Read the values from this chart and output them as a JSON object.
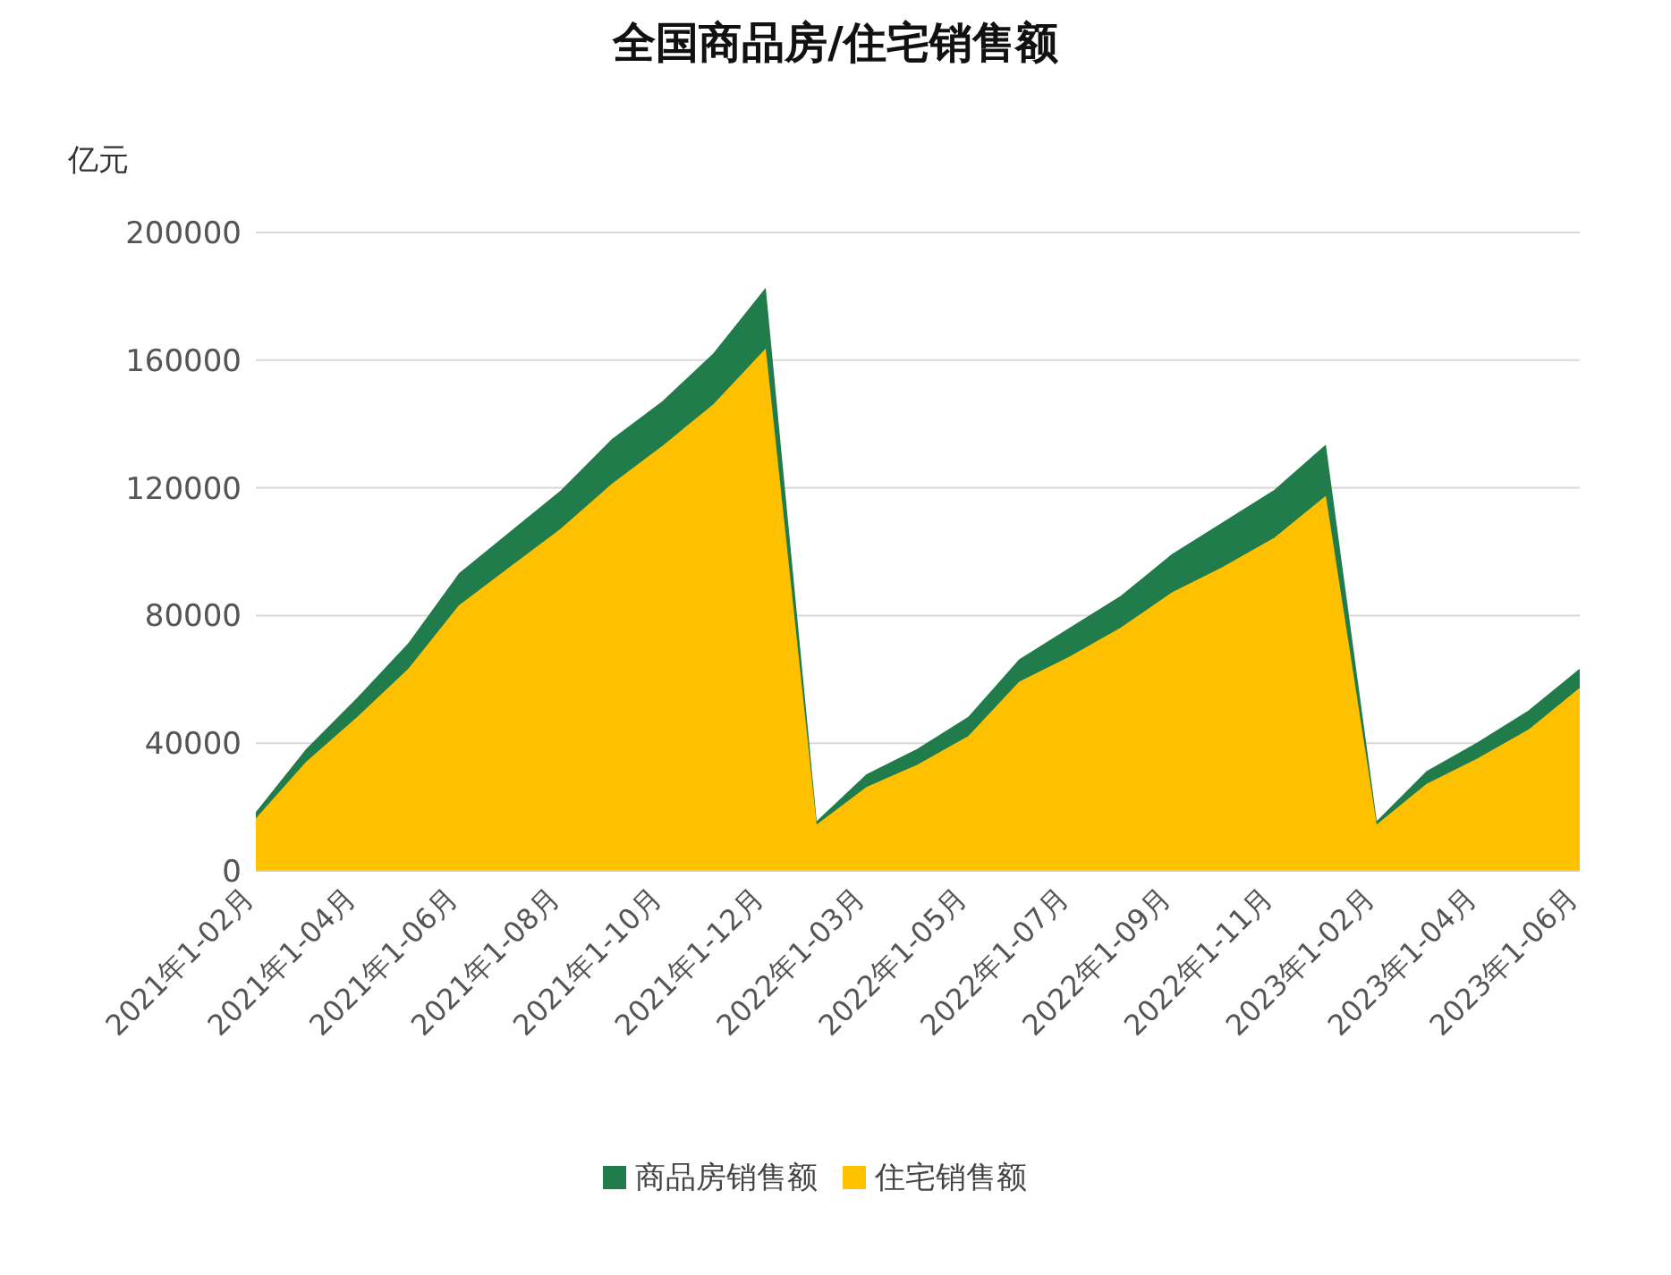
{
  "chart_data": {
    "type": "area",
    "title": "全国商品房/住宅销售额",
    "ylabel": "亿元",
    "categories": [
      "2021年1-02月",
      null,
      "2021年1-04月",
      null,
      "2021年1-06月",
      null,
      "2021年1-08月",
      null,
      "2021年1-10月",
      null,
      "2021年1-12月",
      null,
      "2022年1-03月",
      null,
      "2022年1-05月",
      null,
      "2022年1-07月",
      null,
      "2022年1-09月",
      null,
      "2022年1-11月",
      null,
      "2023年1-02月",
      null,
      "2023年1-04月",
      null,
      "2023年1-06月"
    ],
    "series": [
      {
        "name": "商品房销售额",
        "color": "#217c4c",
        "values": [
          18000,
          38000,
          54000,
          71000,
          93000,
          106000,
          119000,
          135000,
          147000,
          162000,
          182000,
          15000,
          30000,
          38000,
          48000,
          66000,
          76000,
          86000,
          99000,
          109000,
          119000,
          133000,
          15000,
          31000,
          40000,
          50000,
          63000
        ]
      },
      {
        "name": "住宅销售额",
        "color": "#ffc000",
        "values": [
          16000,
          34000,
          48000,
          63000,
          83000,
          95000,
          107000,
          121000,
          133000,
          146000,
          163000,
          14000,
          26000,
          33000,
          42000,
          59000,
          67000,
          76000,
          87000,
          95000,
          104000,
          117000,
          14000,
          27000,
          35000,
          44000,
          57000
        ]
      }
    ],
    "ylim": [
      0,
      200000
    ],
    "yticks": [
      0,
      40000,
      80000,
      120000,
      160000,
      200000
    ],
    "grid": "y",
    "legend": "bottom"
  }
}
